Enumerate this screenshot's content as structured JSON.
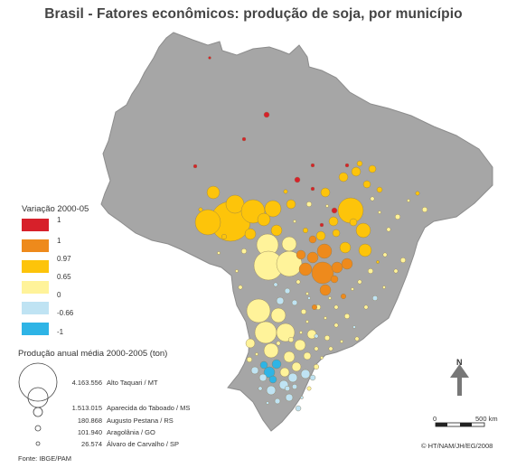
{
  "title": "Brasil - Fatores econômicos: produção de soja, por município",
  "variation_legend": {
    "title": "Variação 2000-05",
    "items": [
      {
        "label": "1",
        "color": "#d7202a"
      },
      {
        "label": "1",
        "color": "#ee8a1c"
      },
      {
        "label": "0.97",
        "color": "#fdc40a"
      },
      {
        "label": "0.65",
        "color": "#fff39a"
      },
      {
        "label": "0",
        "color": "#bfe3f3"
      },
      {
        "label": "-0.66",
        "color": "#2eb4e6"
      },
      {
        "label": "-1",
        "color": ""
      }
    ]
  },
  "production_legend": {
    "title": "Produção anual média 2000-2005 (ton)",
    "items": [
      {
        "value": "4.163.556",
        "place": "Alto Taquari / MT"
      },
      {
        "value": "1.513.015",
        "place": "Aparecida do Taboado / MS"
      },
      {
        "value": "180.868",
        "place": "Augusto Pestana / RS"
      },
      {
        "value": "101.940",
        "place": "Aragolânia / GO"
      },
      {
        "value": "26.574",
        "place": "Álvaro de Carvalho / SP"
      }
    ]
  },
  "scale": {
    "zero": "0",
    "distance": "500 km"
  },
  "north": "N",
  "copyright": "© HT/NAM/JH/EG/2008",
  "source": "Fonte: IBGE/PAM",
  "colors": {
    "land": "#a6a6a6",
    "land_stroke": "#8c8c8c",
    "background": "#ffffff",
    "red": "#d7202a",
    "orange": "#ee8a1c",
    "gold": "#fdc40a",
    "light_yellow": "#fff39a",
    "light_blue": "#bfe3f3",
    "blue": "#2eb4e6"
  }
}
